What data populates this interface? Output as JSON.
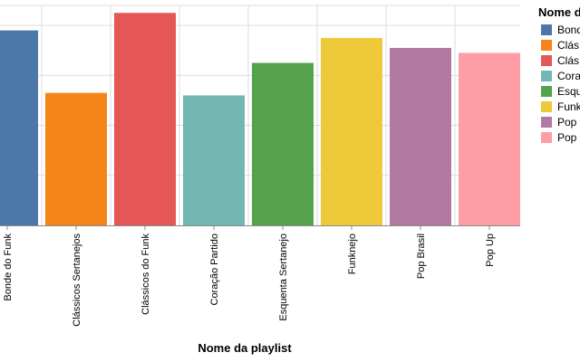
{
  "chart_data": {
    "type": "bar",
    "xlabel": "Nome da playlist",
    "ylabel": "",
    "ylim": [
      0,
      4.4
    ],
    "grid": true,
    "legend_position": "right",
    "legend_title": "Nome da playlist",
    "categories": [
      "Bonde do Funk",
      "Clássicos Sertanejos",
      "Clássicos do Funk",
      "Coração Partido",
      "Esquenta Sertanejo",
      "Funknejo",
      "Pop Brasil",
      "Pop Up"
    ],
    "values": [
      3.9,
      2.65,
      4.25,
      2.6,
      3.25,
      3.75,
      3.55,
      3.45
    ],
    "colors": [
      "#4c78a8",
      "#f58518",
      "#e45756",
      "#72b7b2",
      "#54a24b",
      "#eeca3b",
      "#b279a2",
      "#ff9da6"
    ],
    "legend_labels": [
      "Bonde",
      "Clás",
      "Clás",
      "Cora",
      "Esqu",
      "Funk",
      "Pop",
      "Pop"
    ]
  }
}
